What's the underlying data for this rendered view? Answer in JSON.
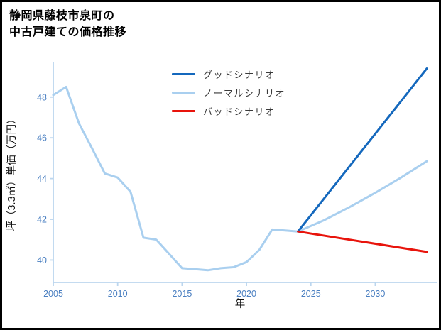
{
  "header": {
    "title_line1": "静岡県藤枝市泉町の",
    "title_line2": "中古戸建ての価格推移"
  },
  "chart_data": {
    "type": "line",
    "title": "静岡県藤枝市泉町の中古戸建ての価格推移",
    "xlabel": "年",
    "ylabel": "坪（3.3㎡）単価（万円）",
    "xlim": [
      2005,
      2034
    ],
    "ylim": [
      38.9,
      49.7
    ],
    "xticks": [
      2005,
      2010,
      2015,
      2020,
      2025,
      2030
    ],
    "yticks": [
      40,
      42,
      44,
      46,
      48
    ],
    "grid": false,
    "legend_position": "upper-center",
    "tick_color": "#4a7fc1",
    "spine_color": "#bcd6ee",
    "draw_order": [
      1,
      0,
      2
    ],
    "series": [
      {
        "name": "グッドシナリオ",
        "color": "#1468bd",
        "width": 3,
        "x": [
          2024,
          2034
        ],
        "y": [
          41.4,
          49.4
        ]
      },
      {
        "name": "ノーマルシナリオ",
        "color": "#a9cfef",
        "width": 3,
        "x": [
          2005,
          2006,
          2007,
          2008,
          2009,
          2010,
          2011,
          2012,
          2013,
          2014,
          2015,
          2016,
          2017,
          2018,
          2019,
          2020,
          2021,
          2022,
          2023,
          2024,
          2026,
          2028,
          2030,
          2032,
          2034
        ],
        "y": [
          48.1,
          48.5,
          46.7,
          45.5,
          44.25,
          44.05,
          43.35,
          41.1,
          41.0,
          40.3,
          39.6,
          39.55,
          39.5,
          39.6,
          39.65,
          39.9,
          40.5,
          41.5,
          41.45,
          41.4,
          41.95,
          42.6,
          43.3,
          44.05,
          44.85
        ]
      },
      {
        "name": "バッドシナリオ",
        "color": "#e8140c",
        "width": 3,
        "x": [
          2024,
          2034
        ],
        "y": [
          41.4,
          40.4
        ]
      }
    ]
  }
}
